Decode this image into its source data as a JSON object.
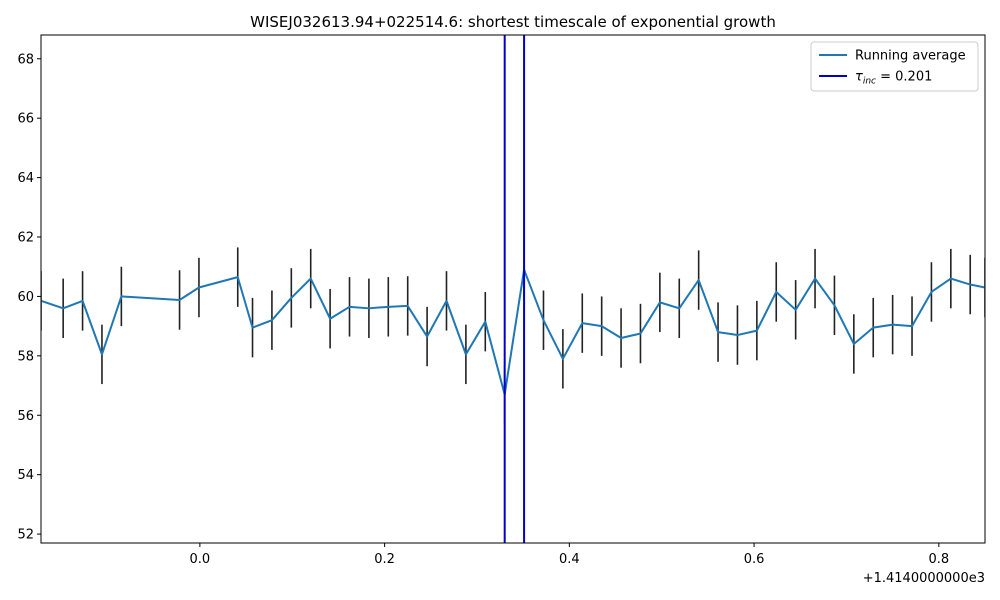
{
  "chart_data": {
    "type": "line",
    "title": "WISEJ032613.94+022514.6: shortest timescale of exponential growth",
    "xlabel": "",
    "ylabel": "",
    "x_offset_label": "+1.4140000000e3",
    "xlim": [
      1413.828,
      1414.85
    ],
    "ylim": [
      51.7,
      68.8
    ],
    "x_ticks": [
      1414.0,
      1414.2,
      1414.4,
      1414.6,
      1414.8
    ],
    "x_tick_labels": [
      "0.0",
      "0.2",
      "0.4",
      "0.6",
      "0.8"
    ],
    "y_ticks": [
      52,
      54,
      56,
      58,
      60,
      62,
      64,
      66,
      68
    ],
    "y_tick_labels": [
      "52",
      "54",
      "56",
      "58",
      "60",
      "62",
      "64",
      "66",
      "68"
    ],
    "grid": false,
    "legend_position": "top-right",
    "series": [
      {
        "name": "Running average",
        "color": "#1f77b4",
        "x": [
          1413.828,
          1413.852,
          1413.873,
          1413.894,
          1413.915,
          1413.978,
          1413.999,
          1414.041,
          1414.057,
          1414.078,
          1414.099,
          1414.12,
          1414.141,
          1414.162,
          1414.183,
          1414.204,
          1414.225,
          1414.246,
          1414.267,
          1414.288,
          1414.309,
          1414.33,
          1414.351,
          1414.372,
          1414.393,
          1414.414,
          1414.435,
          1414.456,
          1414.477,
          1414.498,
          1414.519,
          1414.54,
          1414.561,
          1414.582,
          1414.603,
          1414.624,
          1414.645,
          1414.666,
          1414.687,
          1414.708,
          1414.729,
          1414.75,
          1414.771,
          1414.792,
          1414.813,
          1414.834,
          1414.85
        ],
        "y": [
          59.85,
          59.6,
          59.85,
          58.05,
          60.0,
          59.88,
          60.3,
          60.65,
          58.95,
          59.2,
          59.95,
          60.6,
          59.25,
          59.65,
          59.6,
          59.65,
          59.68,
          58.65,
          59.85,
          58.05,
          59.15,
          56.7,
          60.9,
          59.2,
          57.9,
          59.1,
          59.0,
          58.6,
          58.75,
          59.8,
          59.6,
          60.55,
          58.8,
          58.7,
          58.85,
          60.15,
          59.55,
          60.6,
          59.7,
          58.4,
          58.95,
          59.05,
          59.0,
          60.15,
          60.6,
          60.4,
          60.3
        ],
        "yerr": [
          1.0,
          1.0,
          1.0,
          1.0,
          1.0,
          1.0,
          1.0,
          1.0,
          1.0,
          1.0,
          1.0,
          1.0,
          1.0,
          1.0,
          1.0,
          1.0,
          1.0,
          1.0,
          1.0,
          1.0,
          1.0,
          1.0,
          1.0,
          1.0,
          1.0,
          1.0,
          1.0,
          1.0,
          1.0,
          1.0,
          1.0,
          1.0,
          1.0,
          1.0,
          1.0,
          1.0,
          1.0,
          1.0,
          1.0,
          1.0,
          1.0,
          1.0,
          1.0,
          1.0,
          1.0,
          1.0,
          1.0
        ]
      }
    ],
    "vlines": [
      {
        "x": 1414.33,
        "color": "#0000cd"
      },
      {
        "x": 1414.351,
        "color": "#0000cd"
      }
    ],
    "legend": [
      {
        "label": "Running average",
        "color": "#1f77b4",
        "style": "line"
      },
      {
        "label_prefix": "τ",
        "label_sub": "inc",
        "label_suffix": " = 0.201",
        "color": "#0000cd",
        "style": "line"
      }
    ]
  }
}
